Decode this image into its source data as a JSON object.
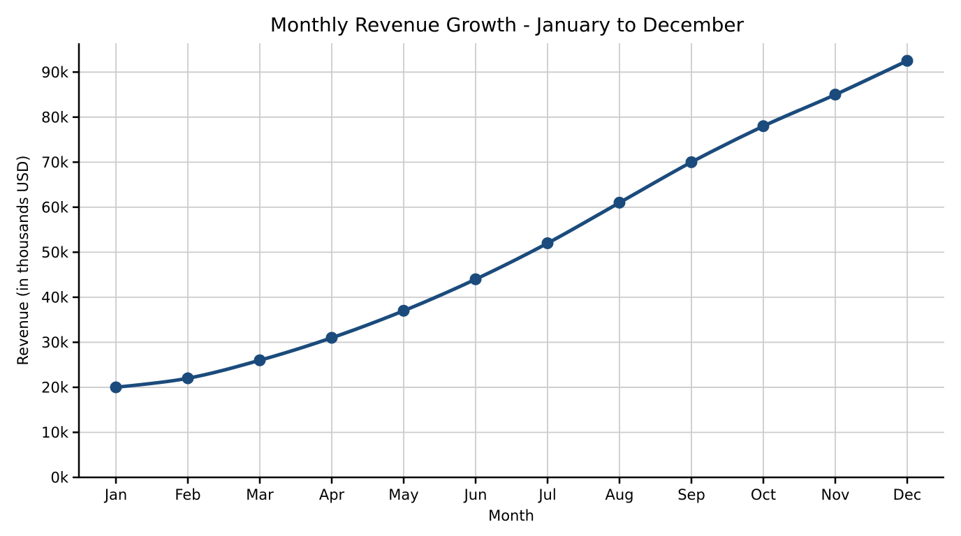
{
  "chart_data": {
    "type": "line",
    "title": "Monthly Revenue Growth - January to December",
    "xlabel": "Month",
    "ylabel": "Revenue (in thousands USD)",
    "categories": [
      "Jan",
      "Feb",
      "Mar",
      "Apr",
      "May",
      "Jun",
      "Jul",
      "Aug",
      "Sep",
      "Oct",
      "Nov",
      "Dec"
    ],
    "series": [
      {
        "name": "Revenue",
        "values": [
          20,
          22,
          26,
          31,
          37,
          44,
          52,
          61,
          70,
          78,
          85,
          92.5
        ]
      }
    ],
    "value_unit": "thousands USD",
    "ylim": [
      0,
      96.4
    ],
    "yticks": [
      0,
      10,
      20,
      30,
      40,
      50,
      60,
      70,
      80,
      90
    ],
    "ytick_suffix": "k",
    "grid": true,
    "legend": false,
    "smooth": true,
    "colors": {
      "line": "#1b4b7c",
      "marker": "#1b4b7c",
      "grid": "#cccccc",
      "spine": "#000000",
      "text": "#000000",
      "background": "#ffffff"
    }
  }
}
